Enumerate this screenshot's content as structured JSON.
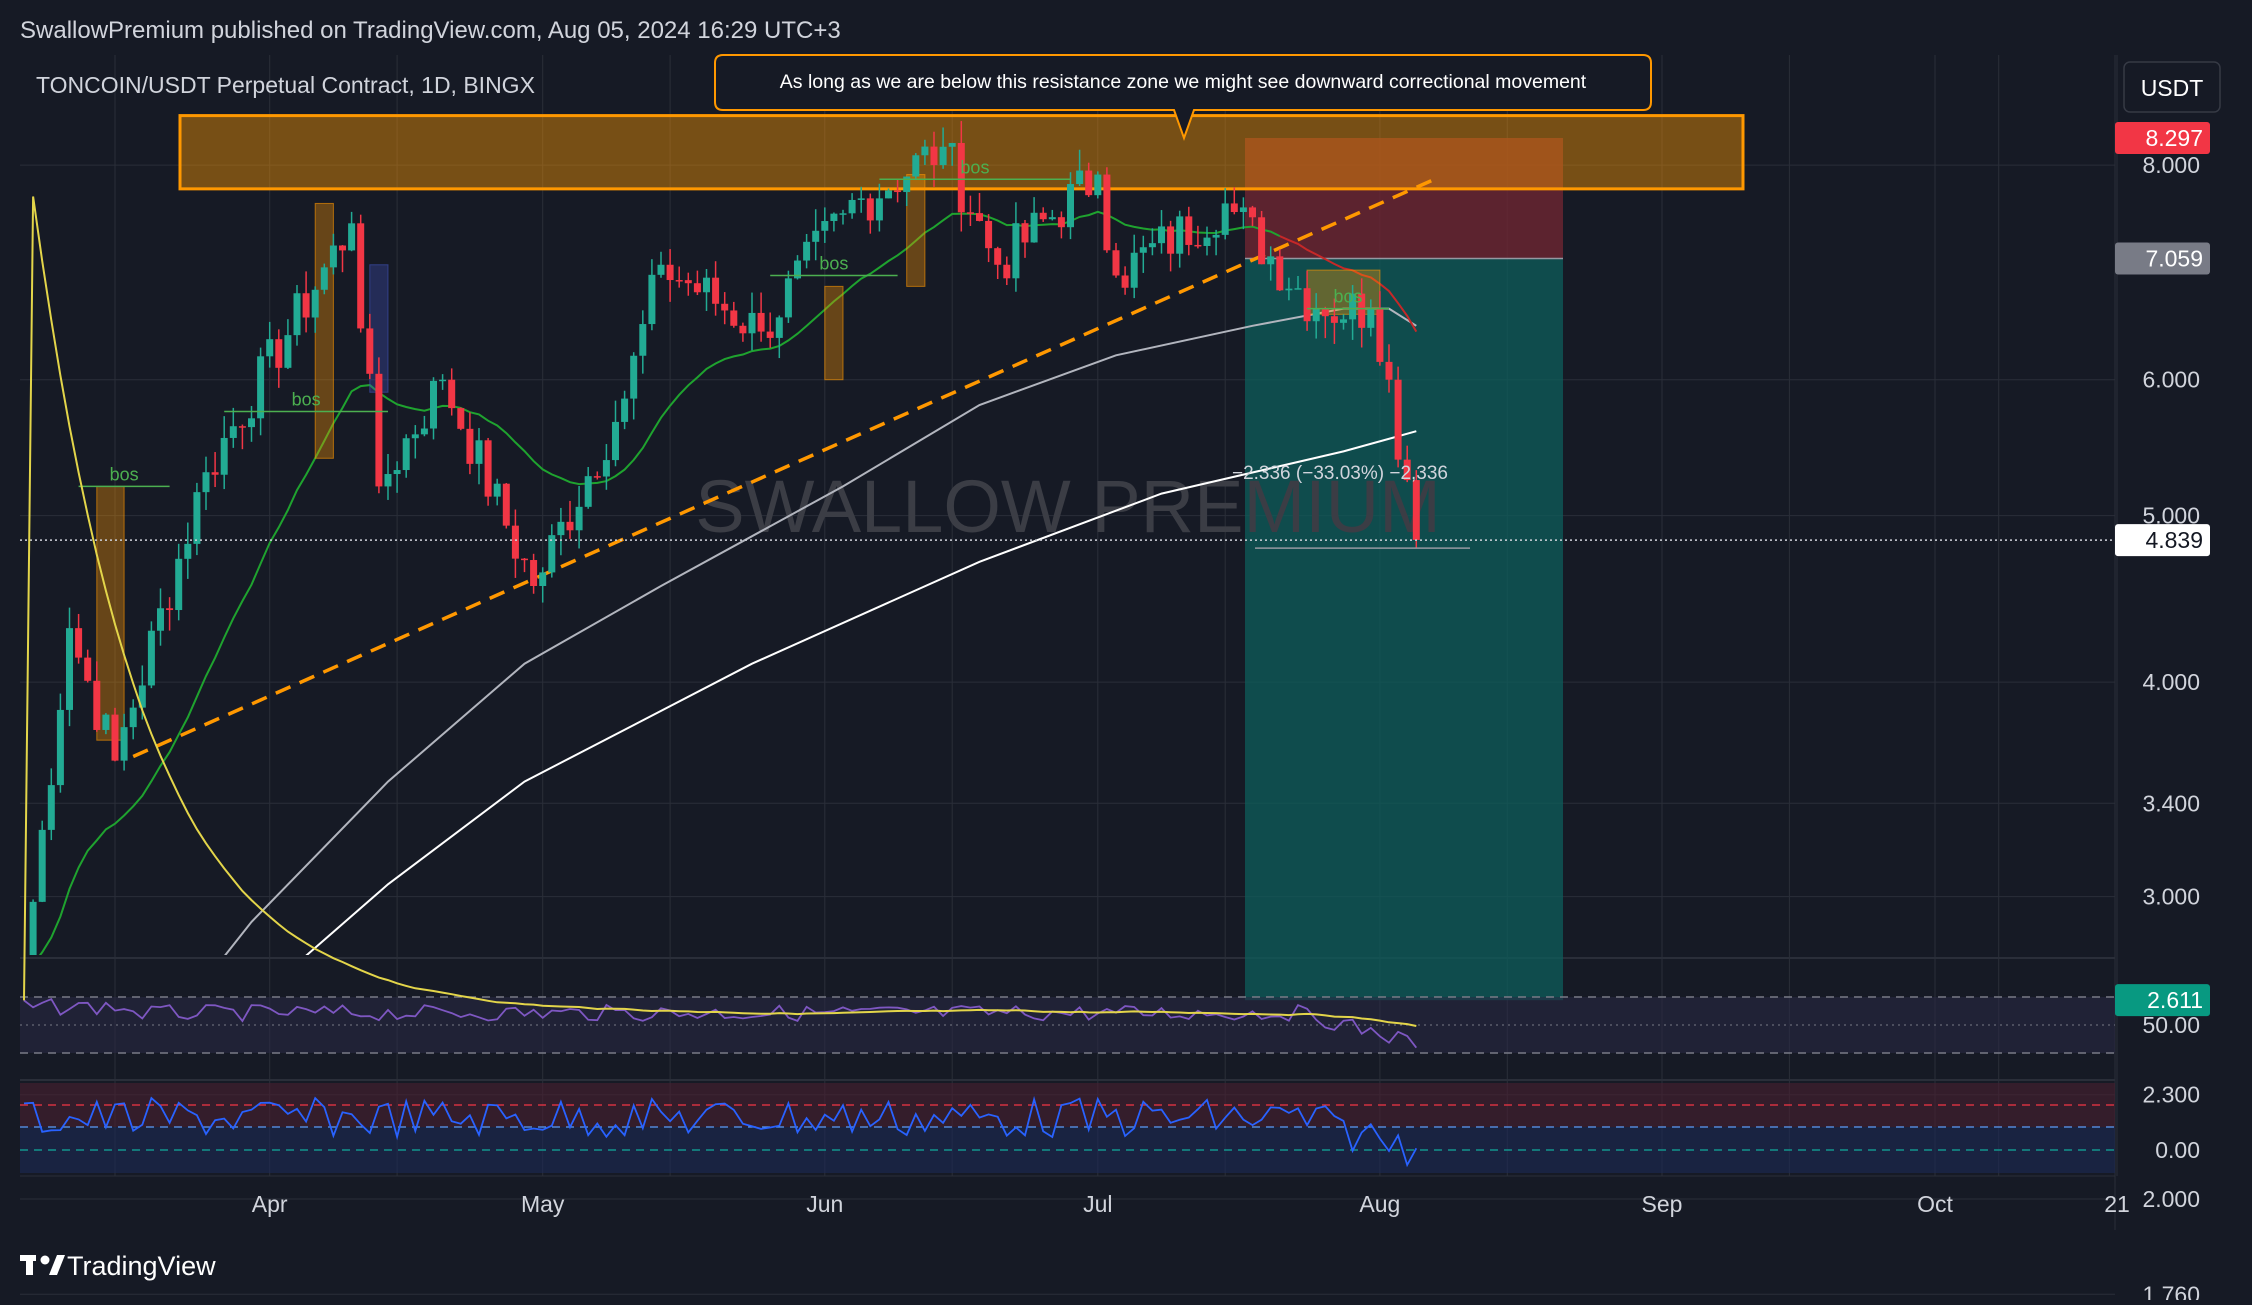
{
  "header": {
    "published_line": "SwallowPremium published on TradingView.com, Aug 05, 2024 16:29 UTC+3"
  },
  "chart": {
    "symbol_title": "TONCOIN/USDT Perpetual Contract, 1D, BINGX",
    "currency_button": "USDT",
    "watermark": "SWALLOW PREMIUM",
    "annotation": "As long as we are below this resistance zone we might see downward correctional movement",
    "measure_label": "−2.336 (−33.03%) −2,336",
    "bos_labels": [
      "bos",
      "bos",
      "bos",
      "bos",
      "bos"
    ],
    "price_axis_ticks": [
      "8.000",
      "6.000",
      "5.000",
      "4.000",
      "3.400",
      "3.000",
      "2.300",
      "2.000",
      "1.760"
    ],
    "price_badges": [
      {
        "label": "8.297",
        "value": 8.297,
        "color": "#f23645",
        "text_color": "#ffffff"
      },
      {
        "label": "7.059",
        "value": 7.059,
        "color": "#787b86",
        "text_color": "#ffffff"
      },
      {
        "label": "4.839",
        "value": 4.839,
        "color": "#ffffff",
        "text_color": "#131722"
      },
      {
        "label": "2.611",
        "value": 2.611,
        "color": "#089981",
        "text_color": "#ffffff"
      }
    ],
    "time_axis_labels": [
      "Apr",
      "May",
      "Jun",
      "Jul",
      "Aug",
      "Sep",
      "Oct",
      "21"
    ],
    "indicator_ticks": [
      "50.00",
      "0.00"
    ]
  },
  "footer": {
    "brand": "TradingView",
    "logo_icon": "tradingview-logo-icon"
  },
  "colors": {
    "background": "#161a25",
    "grid": "#2a2e39",
    "up_candle": "#22ab94",
    "down_candle": "#f23645",
    "resistance_zone": "#ff9800",
    "trendline": "#ff9800",
    "ema_fast": "#1fa32f",
    "ma_grey": "#b2b5be",
    "ma_white": "#ffffff",
    "rsi_line": "#7e57c2",
    "rsi_signal": "#e3d54a",
    "stoch_line": "#2962ff",
    "short_target": "#0e5e5b",
    "short_stop": "#6e2532"
  },
  "chart_data": {
    "type": "candlestick",
    "symbol": "TONCOIN/USDT Perpetual Contract",
    "timeframe": "1D",
    "exchange": "BINGX",
    "y_scale": "log",
    "ylim": [
      1.72,
      9.2
    ],
    "x_range": [
      "2024-03-05",
      "2024-10-25"
    ],
    "ohlc_keypoints": [
      {
        "date": "2024-03-05",
        "close": 2.72
      },
      {
        "date": "2024-03-10",
        "close": 4.3
      },
      {
        "date": "2024-03-15",
        "close": 3.6
      },
      {
        "date": "2024-03-25",
        "close": 5.3
      },
      {
        "date": "2024-04-10",
        "close": 7.4
      },
      {
        "date": "2024-04-13",
        "close": 5.2
      },
      {
        "date": "2024-04-20",
        "close": 6.0
      },
      {
        "date": "2024-04-30",
        "close": 4.55
      },
      {
        "date": "2024-05-10",
        "close": 5.85
      },
      {
        "date": "2024-05-14",
        "close": 7.0
      },
      {
        "date": "2024-05-25",
        "close": 6.4
      },
      {
        "date": "2024-06-03",
        "close": 7.5
      },
      {
        "date": "2024-06-14",
        "close": 8.2
      },
      {
        "date": "2024-06-20",
        "close": 7.0
      },
      {
        "date": "2024-07-01",
        "close": 7.9
      },
      {
        "date": "2024-07-03",
        "close": 6.9
      },
      {
        "date": "2024-07-15",
        "close": 7.6
      },
      {
        "date": "2024-07-25",
        "close": 6.6
      },
      {
        "date": "2024-07-31",
        "close": 6.6
      },
      {
        "date": "2024-08-02",
        "close": 6.0
      },
      {
        "date": "2024-08-05",
        "close": 4.84
      }
    ],
    "levels": {
      "resistance_zone": [
        7.75,
        8.55
      ],
      "short_entry": 7.059,
      "short_stop": 8.297,
      "short_target": 2.611,
      "last_price": 4.839
    },
    "measure": {
      "change": -2.336,
      "change_percent": -33.03
    },
    "indicators": {
      "rsi_levels": [
        30,
        50,
        70
      ],
      "stoch_level": 0
    }
  }
}
